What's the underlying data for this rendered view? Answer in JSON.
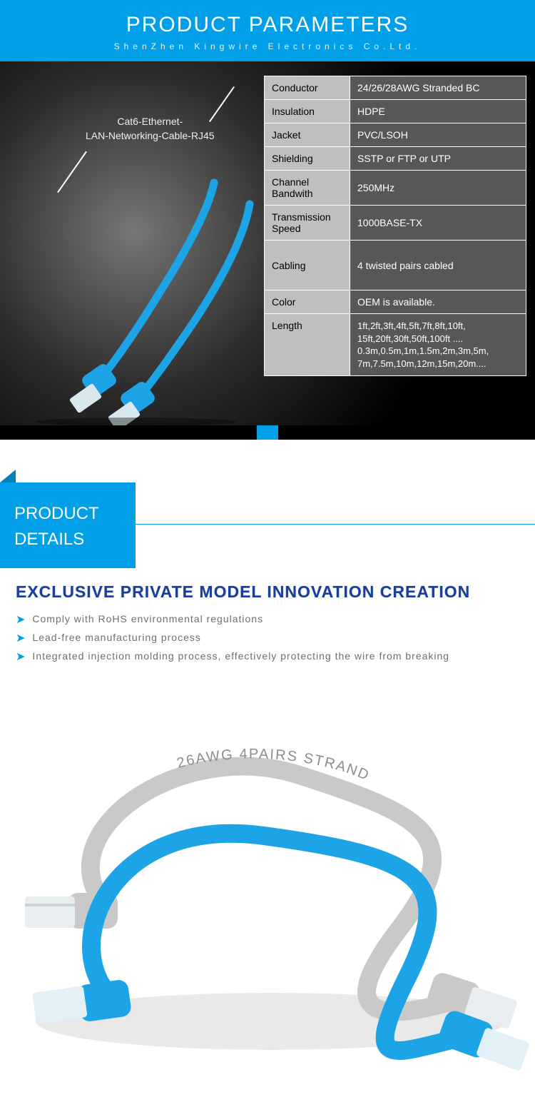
{
  "colors": {
    "brand_blue": "#009fe8",
    "brand_blue_dark": "#0081bd",
    "tagline_blue": "#1b3e9b",
    "cable_blue": "#1ca4e6",
    "cable_grey": "#c9c9c9",
    "spec_key_bg": "#bfbfbf",
    "spec_val_bg": "#575757",
    "body_grey_text": "#6f6f6f"
  },
  "header": {
    "title": "PRODUCT PARAMETERS",
    "subtitle": "ShenZhen Kingwire Electronics Co.Ltd."
  },
  "product_label": {
    "line1": "Cat6-Ethernet-",
    "line2": "LAN-Networking-Cable-RJ45"
  },
  "spec_table": {
    "rows": [
      {
        "k": "Conductor",
        "v": "24/26/28AWG Stranded BC"
      },
      {
        "k": "Insulation",
        "v": "HDPE"
      },
      {
        "k": "Jacket",
        "v": "PVC/LSOH"
      },
      {
        "k": "Shielding",
        "v": "SSTP or FTP or UTP"
      },
      {
        "k": "Channel Bandwith",
        "v": "250MHz"
      },
      {
        "k": "Transmission Speed",
        "v": "1000BASE-TX"
      },
      {
        "k": "Cabling",
        "v": "4 twisted pairs cabled",
        "tall": true
      },
      {
        "k": "Color",
        "v": "OEM is available."
      },
      {
        "k": "Length",
        "v_lines": [
          "1ft,2ft,3ft,4ft,5ft,7ft,8ft,10ft,",
          "15ft,20ft,30ft,50ft,100ft ....",
          "0.3m,0.5m,1m,1.5m,2m,3m,5m,",
          "7m,7.5m,10m,12m,15m,20m...."
        ],
        "xtall": true
      }
    ]
  },
  "section2": {
    "block_line1": "PRODUCT",
    "block_line2": "DETAILS",
    "tagline": "EXCLUSIVE PRIVATE MODEL INNOVATION CREATION",
    "bullets": [
      "Comply with RoHS environmental regulations",
      "Lead-free manufacturing process",
      "Integrated injection molding process, effectively protecting the wire from breaking"
    ]
  },
  "photo_caption": "26AWG 4PAIRS STRAND"
}
